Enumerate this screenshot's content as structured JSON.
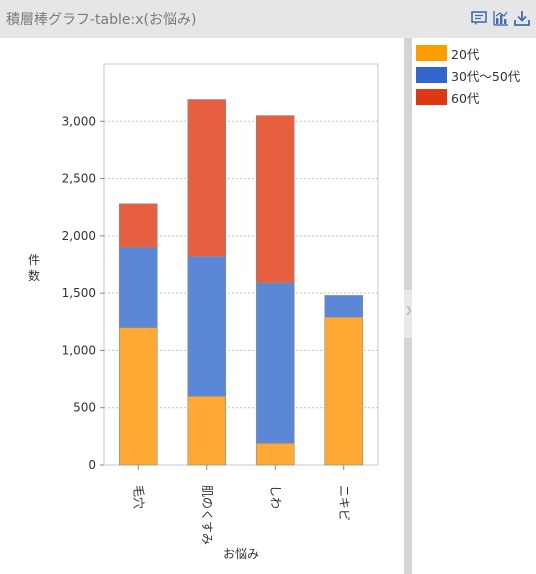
{
  "title": "積層棒グラフ-table:x(お悩み)",
  "toolbar": [
    "comment-icon",
    "chart-icon",
    "download-icon"
  ],
  "chart_data": {
    "type": "bar",
    "stacked": true,
    "categories": [
      "毛穴",
      "肌のくすみ",
      "しわ",
      "ニキビ"
    ],
    "series": [
      {
        "name": "20代",
        "color": "#ffa833",
        "values": [
          1200,
          600,
          190,
          1290
        ]
      },
      {
        "name": "30代〜50代",
        "color": "#5a87d6",
        "values": [
          700,
          1220,
          1400,
          190
        ]
      },
      {
        "name": "60代",
        "color": "#e66040",
        "values": [
          380,
          1370,
          1460,
          0
        ]
      }
    ],
    "xlabel": "お悩み",
    "ylabel": "件数",
    "ylim": [
      0,
      3500
    ],
    "yticks": [
      0,
      500,
      1000,
      1500,
      2000,
      2500,
      3000
    ],
    "ytick_labels": [
      "0",
      "500",
      "1,000",
      "1,500",
      "2,000",
      "2,500",
      "3,000"
    ],
    "grid": true,
    "legend_position": "right"
  },
  "legend": {
    "items": [
      {
        "label": "20代",
        "color": "#ff9d00"
      },
      {
        "label": "30代〜50代",
        "color": "#3366cc"
      },
      {
        "label": "60代",
        "color": "#dc3912"
      }
    ]
  }
}
